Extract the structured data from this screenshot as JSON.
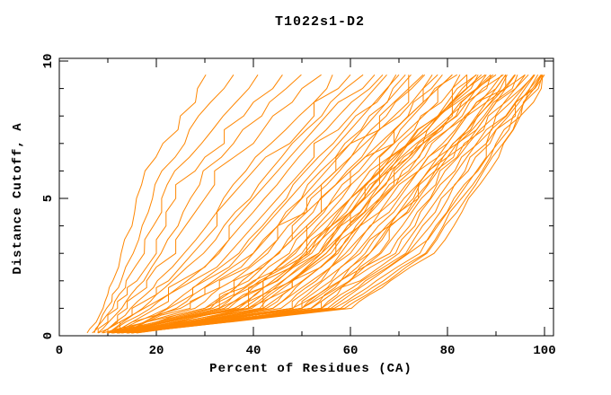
{
  "title": "T1022s1-D2",
  "chart_data": {
    "type": "line",
    "title": "T1022s1-D2",
    "xlabel": "Percent of Residues (CA)",
    "ylabel": "Distance Cutoff, A",
    "xlim": [
      0,
      102
    ],
    "ylim": [
      0,
      10.1
    ],
    "x_major_ticks": [
      0,
      20,
      40,
      60,
      80,
      100
    ],
    "x_minor_ticks": [
      10,
      30,
      50,
      70,
      90
    ],
    "y_major_ticks": [
      0,
      5,
      10
    ],
    "y_minor_ticks": [
      1,
      2,
      3,
      4,
      6,
      7,
      8,
      9
    ],
    "grid": false,
    "legend": null,
    "line_color": "#FF8600",
    "frame_color": "#000000",
    "text_color": "#000000",
    "background": "#FFFFFF",
    "cutoff_levels": [
      0.1,
      0.25,
      0.5,
      0.75,
      1,
      1.25,
      1.5,
      1.75,
      2,
      2.5,
      3,
      3.5,
      4,
      4.5,
      5,
      5.5,
      6,
      6.5,
      7,
      7.5,
      8,
      8.5,
      9,
      9.5
    ],
    "control_cutoffs": [
      0.1,
      1,
      3,
      6,
      9.5
    ],
    "curve_encoding": "[x@0.1, x@1, x@3, x@6, x@9.5, quantize_step] = percent of CA residues under each distance cutoff (A) per model curve",
    "jitter_seed": 7,
    "curves": [
      [
        6,
        9,
        13,
        18,
        31,
        0
      ],
      [
        7,
        10,
        15,
        21,
        36,
        0
      ],
      [
        7,
        11,
        17,
        24,
        42,
        0
      ],
      [
        8,
        12,
        19,
        27,
        46,
        2
      ],
      [
        8,
        13,
        21,
        30,
        50,
        0
      ],
      [
        9,
        14,
        23,
        33,
        54,
        2
      ],
      [
        9,
        15,
        26,
        38,
        57,
        0
      ],
      [
        9,
        16,
        28,
        40,
        60,
        2.5
      ],
      [
        10,
        17,
        30,
        43,
        62,
        0
      ],
      [
        10,
        18,
        32,
        45,
        64,
        2.5
      ],
      [
        10,
        19,
        33,
        47,
        66,
        0
      ],
      [
        11,
        20,
        35,
        49,
        68,
        2.5
      ],
      [
        11,
        22,
        37,
        51,
        70,
        0
      ],
      [
        11,
        23,
        38,
        52,
        71,
        2.5
      ],
      [
        12,
        24,
        40,
        54,
        72,
        0
      ],
      [
        12,
        25,
        41,
        55,
        73,
        2.5
      ],
      [
        10,
        26,
        42,
        56,
        74,
        3
      ],
      [
        10,
        28,
        43,
        57,
        75,
        0
      ],
      [
        11,
        30,
        44,
        58,
        76,
        3
      ],
      [
        11,
        31,
        45,
        59,
        77,
        0
      ],
      [
        11,
        32,
        46,
        60,
        78,
        3
      ],
      [
        12,
        33,
        47,
        61,
        79,
        0
      ],
      [
        12,
        34,
        48,
        62,
        80,
        3
      ],
      [
        12,
        35,
        49,
        63,
        81,
        0
      ],
      [
        13,
        36,
        50,
        64,
        82,
        3
      ],
      [
        13,
        37,
        51,
        65,
        83,
        0
      ],
      [
        13,
        38,
        52,
        66,
        84,
        3
      ],
      [
        14,
        39,
        53,
        67,
        85,
        0
      ],
      [
        14,
        40,
        54,
        68,
        86,
        3
      ],
      [
        14,
        41,
        55,
        69,
        87,
        0
      ],
      [
        15,
        42,
        56,
        70,
        88,
        3
      ],
      [
        15,
        43,
        57,
        71,
        89,
        0
      ],
      [
        10,
        30,
        50,
        65,
        86,
        2
      ],
      [
        10,
        32,
        51,
        66,
        87,
        0
      ],
      [
        11,
        34,
        52,
        67,
        88,
        2
      ],
      [
        11,
        36,
        53,
        68,
        89,
        0
      ],
      [
        11,
        38,
        54,
        69,
        90,
        2
      ],
      [
        12,
        40,
        55,
        70,
        90,
        0
      ],
      [
        12,
        42,
        56,
        71,
        91,
        2
      ],
      [
        12,
        44,
        57,
        72,
        91,
        0
      ],
      [
        13,
        45,
        58,
        73,
        92,
        2
      ],
      [
        13,
        46,
        59,
        74,
        92,
        0
      ],
      [
        13,
        47,
        60,
        75,
        93,
        2
      ],
      [
        14,
        48,
        61,
        76,
        93,
        0
      ],
      [
        14,
        49,
        62,
        76,
        94,
        2
      ],
      [
        14,
        50,
        63,
        77,
        94,
        0
      ],
      [
        15,
        51,
        64,
        77,
        95,
        2
      ],
      [
        15,
        52,
        64,
        78,
        95,
        0
      ],
      [
        15,
        53,
        65,
        78,
        96,
        2
      ],
      [
        16,
        54,
        66,
        79,
        97,
        0
      ],
      [
        11,
        48,
        68,
        80,
        97,
        0
      ],
      [
        11,
        50,
        69,
        81,
        98,
        0
      ],
      [
        12,
        52,
        70,
        82,
        98,
        2
      ],
      [
        12,
        54,
        71,
        83,
        99,
        0
      ],
      [
        13,
        55,
        72,
        84,
        99,
        0
      ],
      [
        13,
        56,
        73,
        85,
        100,
        2
      ],
      [
        14,
        57,
        74,
        86,
        100,
        0
      ],
      [
        14,
        58,
        75,
        87,
        100,
        0
      ],
      [
        15,
        59,
        76,
        88,
        100,
        0
      ],
      [
        15,
        60,
        77,
        89,
        100,
        0
      ]
    ]
  }
}
